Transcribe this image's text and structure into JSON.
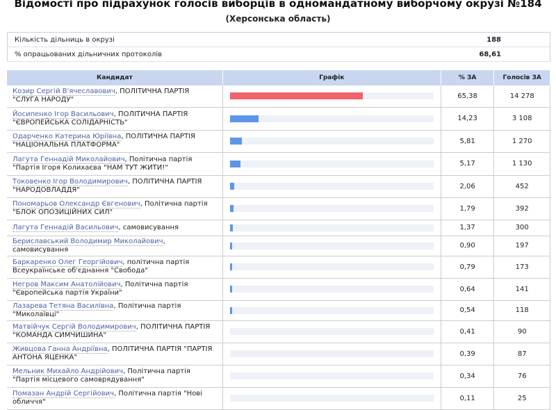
{
  "title": "Відомості про підрахунок голосів виборців в одномандатному виборчому окрузі №184",
  "region": "(Херсонська область)",
  "summary": [
    {
      "label": "Кількість дільниць в окрузі",
      "value": "188"
    },
    {
      "label": "% опрацьованих дільничних протоколів",
      "value": "68,61"
    }
  ],
  "headers": {
    "candidate": "Кандидат",
    "chart": "Графік",
    "pct": "% ЗА",
    "votes": "Голосів ЗА"
  },
  "colors": {
    "leader": "#f0636a",
    "other": "#5b96e8"
  },
  "rows": [
    {
      "name": "Козир Сергій В'ячеславович",
      "party": ", ПОЛІТИЧНА ПАРТІЯ \"СЛУГА НАРОДУ\"",
      "pct": "65,38",
      "p": 65.38,
      "votes": "14 278"
    },
    {
      "name": "Йосипенко Ігор Васильович",
      "party": ", ПОЛІТИЧНА ПАРТІЯ \"ЄВРОПЕЙСЬКА СОЛІДАРНІСТЬ\"",
      "pct": "14,23",
      "p": 14.23,
      "votes": "3 108"
    },
    {
      "name": "Одарченко Катерина Юріївна",
      "party": ", ПОЛІТИЧНА ПАРТІЯ \"НАЦІОНАЛЬНА ПЛАТФОРМА\"",
      "pct": "5,81",
      "p": 5.81,
      "votes": "1 270"
    },
    {
      "name": "Лагута Геннадій Миколайович",
      "party": ", Політична партія \"Партія Ігоря Колихаєва \"НАМ ТУТ ЖИТИ!\"",
      "pct": "5,17",
      "p": 5.17,
      "votes": "1 130"
    },
    {
      "name": "Токовенко Ігор Володимирович",
      "party": ", ПОЛІТИЧНА ПАРТІЯ \"НАРОДОВЛАДДЯ\"",
      "pct": "2,06",
      "p": 2.06,
      "votes": "452"
    },
    {
      "name": "Пономарьов Олександр Євгенович",
      "party": ", Політична партія \"БЛОК ОПОЗИЦІЙНИХ СИЛ\"",
      "pct": "1,79",
      "p": 1.79,
      "votes": "392"
    },
    {
      "name": "Лагута Геннадій Васильович",
      "party": ", самовисування",
      "pct": "1,37",
      "p": 1.37,
      "votes": "300"
    },
    {
      "name": "Бериславський Володимир Миколайович",
      "party": ", самовисування",
      "pct": "0,90",
      "p": 0.9,
      "votes": "197"
    },
    {
      "name": "Баркаренко Олег Георгійович",
      "party": ", політична партія Всеукраїнське об'єднання \"Свобода\"",
      "pct": "0,79",
      "p": 0.79,
      "votes": "173"
    },
    {
      "name": "Негров Максим Анатолійович",
      "party": ", Політична партія \"Європейська партія України\"",
      "pct": "0,64",
      "p": 0.64,
      "votes": "141"
    },
    {
      "name": "Лазарева Тетяна Василівна",
      "party": ", Політична партія \"Миколаївці\"",
      "pct": "0,54",
      "p": 0.54,
      "votes": "118"
    },
    {
      "name": "Матвійчук Сергій Володимирович",
      "party": ", ПОЛІТИЧНА ПАРТІЯ \"КОМАНДА СИМЧИШИНА\"",
      "pct": "0,41",
      "p": 0.41,
      "votes": "90"
    },
    {
      "name": "Живцова Ганна Андріївна",
      "party": ", ПОЛІТИЧНА ПАРТІЯ \"ПАРТІЯ АНТОНА ЯЦЕНКА\"",
      "pct": "0,39",
      "p": 0.39,
      "votes": "87"
    },
    {
      "name": "Мельник Михайло Андрійович",
      "party": ", Політична партія \"Партія місцевого самоврядування\"",
      "pct": "0,34",
      "p": 0.34,
      "votes": "76"
    },
    {
      "name": "Помазан Андрій Сергійович",
      "party": ", Політична партія \"Нові обличчя\"",
      "pct": "0,11",
      "p": 0.11,
      "votes": "25"
    }
  ]
}
